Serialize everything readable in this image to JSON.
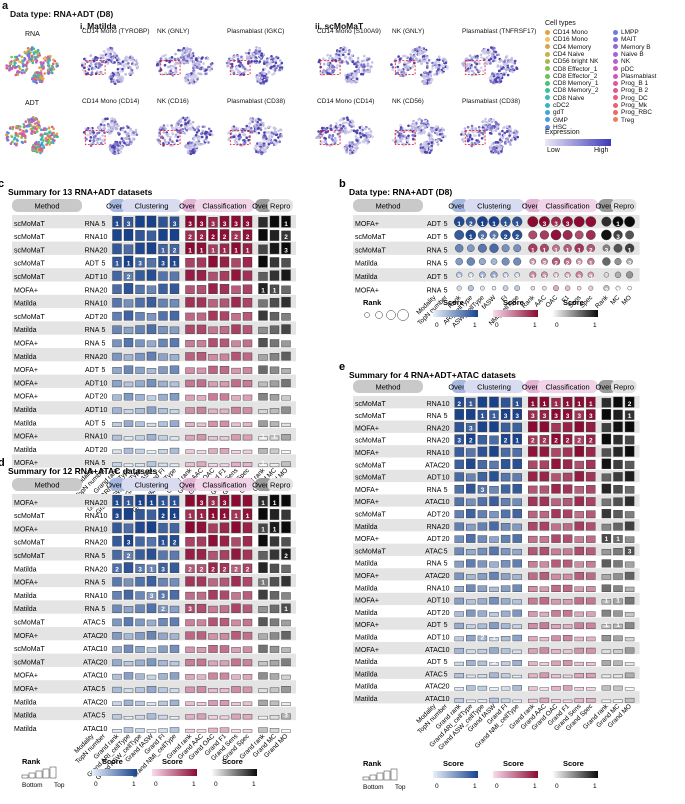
{
  "panel_a": {
    "letter": "a",
    "title": "Data type: RNA+ADT (D8)",
    "col_i": "i. Matilda",
    "col_ii": "ii. scMoMaT",
    "row_rna": "RNA",
    "row_adt": "ADT",
    "rna_titles": [
      "CD14 Mono (TYROBP)",
      "NK (GNLY)",
      "Plasmablast (IGKC)",
      "CD14 Mono (S100A9)",
      "NK (GNLY)",
      "Plasmablast (TNFRSF17)"
    ],
    "adt_titles": [
      "CD14 Mono (CD14)",
      "NK (CD16)",
      "Plasmablast (CD38)",
      "CD14 Mono (CD14)",
      "NK (CD56)",
      "Plasmablast (CD38)"
    ],
    "legend_title": "Cell types",
    "cell_types_col1": [
      "CD14 Mono",
      "CD16 Mono",
      "CD4 Memory",
      "CD4 Naive",
      "CD56 bright NK",
      "CD8 Effector_1",
      "CD8 Effector_2",
      "CD8 Memory_1",
      "CD8 Memory_2",
      "CD8 Naive",
      "cDC2",
      "gdT",
      "GMP",
      "HSC"
    ],
    "cell_types_col2": [
      "LMPP",
      "MAIT",
      "Memory B",
      "Naive B",
      "NK",
      "pDC",
      "Plasmablast",
      "Prog_B 1",
      "Prog_B 2",
      "Prog_DC",
      "Prog_Mk",
      "Prog_RBC",
      "Treg"
    ],
    "colors_col1": [
      "#e6a04a",
      "#f0c25a",
      "#d4a64a",
      "#c8b24a",
      "#a6b84a",
      "#8cc04a",
      "#6cc05a",
      "#4cc07a",
      "#3cc09a",
      "#3abcb0",
      "#3ab4c4",
      "#40a8d4",
      "#4c98dc",
      "#5c88e0"
    ],
    "colors_col2": [
      "#6c7ce0",
      "#7c70dc",
      "#9068d8",
      "#a464d4",
      "#b860cc",
      "#c85cc0",
      "#d458b0",
      "#dc58a0",
      "#e45890",
      "#e85c80",
      "#ec6070",
      "#ee6864",
      "#e88060"
    ],
    "expression_title": "Expression",
    "expression_low": "Low",
    "expression_high": "High"
  },
  "common": {
    "method": "Method",
    "overall": "Overall",
    "clustering": "Clustering",
    "classification": "Classification",
    "repro": "Repro",
    "rank_title": "Rank",
    "score_title": "Score",
    "bottom": "Bottom",
    "top": "Top",
    "zero": "0",
    "one": "1",
    "col_labels_full": [
      "Modality",
      "TopN number",
      "Grand rank",
      "Grand ARI_cellType",
      "Grand ASW_cellType",
      "Grand fASW",
      "Grand FI",
      "Grand NMI_cellType",
      "Grand rank",
      "Grand AAC",
      "Grand OAC",
      "Grand F1",
      "Grand Sens",
      "Grand Spec",
      "Grand rank",
      "Grand MC",
      "Grand MO"
    ],
    "col_labels_b": [
      "Modality",
      "TopN number",
      "Rank",
      "ARI_cellType",
      "ASW_cellType",
      "fASW",
      "FI",
      "NMI_cellType",
      "Rank",
      "AAC",
      "OAC",
      "F1",
      "Sens",
      "Spec",
      "Rank",
      "MC",
      "MO"
    ]
  },
  "panel_c": {
    "letter": "c",
    "title": "Summary for 13 RNA+ADT datasets",
    "rows": [
      [
        "scMoMaT",
        "RNA",
        "5"
      ],
      [
        "scMoMaT",
        "RNA",
        "10"
      ],
      [
        "scMoMaT",
        "RNA",
        "20"
      ],
      [
        "scMoMaT",
        "ADT",
        "5"
      ],
      [
        "scMoMaT",
        "ADT",
        "10"
      ],
      [
        "MOFA+",
        "RNA",
        "20"
      ],
      [
        "Matilda",
        "RNA",
        "10"
      ],
      [
        "scMoMaT",
        "ADT",
        "20"
      ],
      [
        "Matilda",
        "RNA",
        "5"
      ],
      [
        "MOFA+",
        "RNA",
        "5"
      ],
      [
        "Matilda",
        "RNA",
        "20"
      ],
      [
        "MOFA+",
        "ADT",
        "5"
      ],
      [
        "MOFA+",
        "ADT",
        "10"
      ],
      [
        "MOFA+",
        "ADT",
        "20"
      ],
      [
        "Matilda",
        "ADT",
        "10"
      ],
      [
        "Matilda",
        "ADT",
        "5"
      ],
      [
        "MOFA+",
        "RNA",
        "10"
      ],
      [
        "Matilda",
        "ADT",
        "20"
      ],
      [
        "MOFA+",
        "RNA",
        "5"
      ]
    ],
    "rank_labels": [
      {
        "row": 0,
        "col": 2,
        "text": "1"
      },
      {
        "row": 0,
        "col": 3,
        "text": "3"
      },
      {
        "row": 0,
        "col": 7,
        "text": "3"
      },
      {
        "row": 0,
        "col": 8,
        "text": "3"
      },
      {
        "row": 0,
        "col": 9,
        "text": "3"
      },
      {
        "row": 0,
        "col": 10,
        "text": "3"
      },
      {
        "row": 0,
        "col": 11,
        "text": "3"
      },
      {
        "row": 0,
        "col": 12,
        "text": "3"
      },
      {
        "row": 0,
        "col": 13,
        "text": "3"
      },
      {
        "row": 0,
        "col": 16,
        "text": "1"
      },
      {
        "row": 1,
        "col": 8,
        "text": "2"
      },
      {
        "row": 1,
        "col": 9,
        "text": "2"
      },
      {
        "row": 1,
        "col": 10,
        "text": "2"
      },
      {
        "row": 1,
        "col": 11,
        "text": "2"
      },
      {
        "row": 1,
        "col": 12,
        "text": "2"
      },
      {
        "row": 1,
        "col": 13,
        "text": "2"
      },
      {
        "row": 1,
        "col": 16,
        "text": "2"
      },
      {
        "row": 2,
        "col": 6,
        "text": "1"
      },
      {
        "row": 2,
        "col": 8,
        "text": "1"
      },
      {
        "row": 2,
        "col": 9,
        "text": "1"
      },
      {
        "row": 2,
        "col": 10,
        "text": "1"
      },
      {
        "row": 2,
        "col": 11,
        "text": "1"
      },
      {
        "row": 2,
        "col": 12,
        "text": "1"
      },
      {
        "row": 2,
        "col": 13,
        "text": "1"
      },
      {
        "row": 2,
        "col": 16,
        "text": "3"
      },
      {
        "row": 2,
        "col": 7,
        "text": "2"
      },
      {
        "row": 3,
        "col": 2,
        "text": "1"
      },
      {
        "row": 3,
        "col": 3,
        "text": "1"
      },
      {
        "row": 3,
        "col": 4,
        "text": "3"
      },
      {
        "row": 3,
        "col": 6,
        "text": "3"
      },
      {
        "row": 3,
        "col": 7,
        "text": "1"
      },
      {
        "row": 4,
        "col": 3,
        "text": "2"
      },
      {
        "row": 5,
        "col": 14,
        "text": "1"
      },
      {
        "row": 5,
        "col": 15,
        "text": "1"
      },
      {
        "row": 16,
        "col": 14,
        "text": "1"
      },
      {
        "row": 16,
        "col": 15,
        "text": "1"
      },
      {
        "row": 18,
        "col": 14,
        "text": "1"
      }
    ]
  },
  "panel_b": {
    "letter": "b",
    "title": "Data type: RNA+ADT (D8)",
    "rows": [
      [
        "MOFA+",
        "ADT",
        "5"
      ],
      [
        "scMoMaT",
        "ADT",
        "5"
      ],
      [
        "scMoMaT",
        "RNA",
        "5"
      ],
      [
        "Matilda",
        "RNA",
        "5"
      ],
      [
        "Matilda",
        "ADT",
        "5"
      ],
      [
        "MOFA+",
        "RNA",
        "5"
      ]
    ],
    "rank_labels": [
      {
        "row": 0,
        "col": 2,
        "text": "1"
      },
      {
        "row": 0,
        "col": 3,
        "text": "2"
      },
      {
        "row": 0,
        "col": 4,
        "text": "1"
      },
      {
        "row": 0,
        "col": 5,
        "text": "1"
      },
      {
        "row": 0,
        "col": 6,
        "text": "1"
      },
      {
        "row": 0,
        "col": 7,
        "text": "1"
      },
      {
        "row": 0,
        "col": 9,
        "text": "3"
      },
      {
        "row": 0,
        "col": 10,
        "text": "3"
      },
      {
        "row": 0,
        "col": 11,
        "text": "3"
      },
      {
        "row": 0,
        "col": 15,
        "text": "1"
      },
      {
        "row": 1,
        "col": 3,
        "text": "1"
      },
      {
        "row": 1,
        "col": 4,
        "text": "2"
      },
      {
        "row": 1,
        "col": 5,
        "text": "2"
      },
      {
        "row": 1,
        "col": 6,
        "text": "2"
      },
      {
        "row": 1,
        "col": 7,
        "text": "2"
      },
      {
        "row": 1,
        "col": 15,
        "text": "3"
      },
      {
        "row": 2,
        "col": 8,
        "text": "1"
      },
      {
        "row": 2,
        "col": 9,
        "text": "1"
      },
      {
        "row": 2,
        "col": 10,
        "text": "1"
      },
      {
        "row": 2,
        "col": 11,
        "text": "1"
      },
      {
        "row": 2,
        "col": 12,
        "text": "1"
      },
      {
        "row": 2,
        "col": 13,
        "text": "2"
      },
      {
        "row": 2,
        "col": 14,
        "text": "3"
      },
      {
        "row": 2,
        "col": 16,
        "text": "1"
      },
      {
        "row": 3,
        "col": 8,
        "text": "2"
      },
      {
        "row": 3,
        "col": 9,
        "text": "2"
      },
      {
        "row": 3,
        "col": 10,
        "text": "2"
      },
      {
        "row": 3,
        "col": 11,
        "text": "2"
      },
      {
        "row": 3,
        "col": 12,
        "text": "2"
      },
      {
        "row": 3,
        "col": 13,
        "text": "1"
      },
      {
        "row": 3,
        "col": 16,
        "text": "2"
      },
      {
        "row": 4,
        "col": 2,
        "text": "3"
      },
      {
        "row": 4,
        "col": 3,
        "text": "3"
      },
      {
        "row": 4,
        "col": 4,
        "text": "1"
      },
      {
        "row": 4,
        "col": 5,
        "text": "3"
      },
      {
        "row": 4,
        "col": 6,
        "text": "3"
      },
      {
        "row": 4,
        "col": 7,
        "text": "3"
      },
      {
        "row": 4,
        "col": 8,
        "text": "3"
      },
      {
        "row": 4,
        "col": 9,
        "text": "3"
      },
      {
        "row": 4,
        "col": 10,
        "text": "1"
      },
      {
        "row": 4,
        "col": 11,
        "text": "3"
      },
      {
        "row": 4,
        "col": 12,
        "text": "3"
      },
      {
        "row": 4,
        "col": 13,
        "text": "3"
      },
      {
        "row": 5,
        "col": 14,
        "text": "2"
      },
      {
        "row": 5,
        "col": 15,
        "text": "2"
      }
    ]
  },
  "panel_d": {
    "letter": "d",
    "title": "Summary for 12 RNA+ATAC datasets",
    "rows": [
      [
        "MOFA+",
        "RNA",
        "20"
      ],
      [
        "scMoMaT",
        "RNA",
        "10"
      ],
      [
        "MOFA+",
        "RNA",
        "10"
      ],
      [
        "scMoMaT",
        "RNA",
        "20"
      ],
      [
        "scMoMaT",
        "RNA",
        "5"
      ],
      [
        "Matilda",
        "RNA",
        "20"
      ],
      [
        "MOFA+",
        "RNA",
        "5"
      ],
      [
        "Matilda",
        "RNA",
        "10"
      ],
      [
        "Matilda",
        "RNA",
        "5"
      ],
      [
        "scMoMaT",
        "ATAC",
        "5"
      ],
      [
        "MOFA+",
        "ATAC",
        "20"
      ],
      [
        "scMoMaT",
        "ATAC",
        "10"
      ],
      [
        "scMoMaT",
        "ATAC",
        "20"
      ],
      [
        "MOFA+",
        "ATAC",
        "10"
      ],
      [
        "MOFA+",
        "ATAC",
        "5"
      ],
      [
        "Matilda",
        "ATAC",
        "20"
      ],
      [
        "Matilda",
        "ATAC",
        "5"
      ],
      [
        "Matilda",
        "ATAC",
        "10"
      ]
    ],
    "rank_labels": [
      {
        "row": 0,
        "col": 2,
        "text": "1"
      },
      {
        "row": 0,
        "col": 3,
        "text": "1"
      },
      {
        "row": 0,
        "col": 4,
        "text": "1"
      },
      {
        "row": 0,
        "col": 5,
        "text": "1"
      },
      {
        "row": 0,
        "col": 6,
        "text": "1"
      },
      {
        "row": 0,
        "col": 7,
        "text": "1"
      },
      {
        "row": 0,
        "col": 9,
        "text": "3"
      },
      {
        "row": 0,
        "col": 10,
        "text": "3"
      },
      {
        "row": 0,
        "col": 11,
        "text": "3"
      },
      {
        "row": 0,
        "col": 14,
        "text": "1"
      },
      {
        "row": 0,
        "col": 15,
        "text": "1"
      },
      {
        "row": 1,
        "col": 2,
        "text": "3"
      },
      {
        "row": 1,
        "col": 6,
        "text": "2"
      },
      {
        "row": 1,
        "col": 7,
        "text": "1"
      },
      {
        "row": 1,
        "col": 8,
        "text": "1"
      },
      {
        "row": 1,
        "col": 9,
        "text": "1"
      },
      {
        "row": 1,
        "col": 10,
        "text": "1"
      },
      {
        "row": 1,
        "col": 11,
        "text": "1"
      },
      {
        "row": 1,
        "col": 12,
        "text": "1"
      },
      {
        "row": 1,
        "col": 13,
        "text": "1"
      },
      {
        "row": 2,
        "col": 14,
        "text": "1"
      },
      {
        "row": 2,
        "col": 15,
        "text": "1"
      },
      {
        "row": 3,
        "col": 3,
        "text": "3"
      },
      {
        "row": 3,
        "col": 6,
        "text": "1"
      },
      {
        "row": 3,
        "col": 7,
        "text": "2"
      },
      {
        "row": 4,
        "col": 3,
        "text": "2"
      },
      {
        "row": 4,
        "col": 16,
        "text": "2"
      },
      {
        "row": 5,
        "col": 2,
        "text": "2"
      },
      {
        "row": 5,
        "col": 4,
        "text": "3"
      },
      {
        "row": 5,
        "col": 5,
        "text": "1"
      },
      {
        "row": 5,
        "col": 6,
        "text": "3"
      },
      {
        "row": 5,
        "col": 8,
        "text": "2"
      },
      {
        "row": 5,
        "col": 9,
        "text": "2"
      },
      {
        "row": 5,
        "col": 10,
        "text": "2"
      },
      {
        "row": 5,
        "col": 11,
        "text": "2"
      },
      {
        "row": 5,
        "col": 12,
        "text": "2"
      },
      {
        "row": 5,
        "col": 13,
        "text": "2"
      },
      {
        "row": 6,
        "col": 14,
        "text": "1"
      },
      {
        "row": 7,
        "col": 5,
        "text": "3"
      },
      {
        "row": 7,
        "col": 6,
        "text": "3"
      },
      {
        "row": 8,
        "col": 6,
        "text": "2"
      },
      {
        "row": 8,
        "col": 8,
        "text": "3"
      },
      {
        "row": 8,
        "col": 16,
        "text": "1"
      },
      {
        "row": 16,
        "col": 16,
        "text": "3"
      }
    ]
  },
  "panel_e": {
    "letter": "e",
    "title": "Summary for 4 RNA+ADT+ATAC datasets",
    "rows": [
      [
        "scMoMaT",
        "RNA",
        "10"
      ],
      [
        "scMoMaT",
        "RNA",
        "5"
      ],
      [
        "MOFA+",
        "RNA",
        "20"
      ],
      [
        "scMoMaT",
        "RNA",
        "20"
      ],
      [
        "MOFA+",
        "RNA",
        "10"
      ],
      [
        "scMoMaT",
        "ATAC",
        "20"
      ],
      [
        "scMoMaT",
        "ADT",
        "10"
      ],
      [
        "MOFA+",
        "RNA",
        "5"
      ],
      [
        "MOFA+",
        "ATAC",
        "10"
      ],
      [
        "scMoMaT",
        "ADT",
        "20"
      ],
      [
        "Matilda",
        "RNA",
        "20"
      ],
      [
        "MOFA+",
        "ADT",
        "20"
      ],
      [
        "scMoMaT",
        "ATAC",
        "5"
      ],
      [
        "Matilda",
        "RNA",
        "5"
      ],
      [
        "MOFA+",
        "ATAC",
        "20"
      ],
      [
        "Matilda",
        "RNA",
        "10"
      ],
      [
        "MOFA+",
        "ADT",
        "10"
      ],
      [
        "Matilda",
        "ADT",
        "20"
      ],
      [
        "MOFA+",
        "ADT",
        "5"
      ],
      [
        "Matilda",
        "ADT",
        "10"
      ],
      [
        "MOFA+",
        "ATAC",
        "10"
      ],
      [
        "Matilda",
        "ADT",
        "5"
      ],
      [
        "Matilda",
        "ATAC",
        "5"
      ],
      [
        "Matilda",
        "ATAC",
        "20"
      ],
      [
        "Matilda",
        "ATAC",
        "10"
      ]
    ],
    "rank_labels": [
      {
        "row": 0,
        "col": 2,
        "text": "2"
      },
      {
        "row": 0,
        "col": 3,
        "text": "1"
      },
      {
        "row": 0,
        "col": 7,
        "text": "1"
      },
      {
        "row": 0,
        "col": 8,
        "text": "1"
      },
      {
        "row": 0,
        "col": 9,
        "text": "1"
      },
      {
        "row": 0,
        "col": 10,
        "text": "1"
      },
      {
        "row": 0,
        "col": 11,
        "text": "1"
      },
      {
        "row": 0,
        "col": 12,
        "text": "1"
      },
      {
        "row": 0,
        "col": 13,
        "text": "1"
      },
      {
        "row": 0,
        "col": 16,
        "text": "2"
      },
      {
        "row": 1,
        "col": 4,
        "text": "1"
      },
      {
        "row": 1,
        "col": 5,
        "text": "1"
      },
      {
        "row": 1,
        "col": 6,
        "text": "3"
      },
      {
        "row": 1,
        "col": 7,
        "text": "3"
      },
      {
        "row": 1,
        "col": 8,
        "text": "3"
      },
      {
        "row": 1,
        "col": 9,
        "text": "3"
      },
      {
        "row": 1,
        "col": 10,
        "text": "3"
      },
      {
        "row": 1,
        "col": 11,
        "text": "3"
      },
      {
        "row": 1,
        "col": 12,
        "text": "3"
      },
      {
        "row": 1,
        "col": 13,
        "text": "3"
      },
      {
        "row": 1,
        "col": 16,
        "text": "1"
      },
      {
        "row": 2,
        "col": 3,
        "text": "3"
      },
      {
        "row": 3,
        "col": 2,
        "text": "3"
      },
      {
        "row": 3,
        "col": 3,
        "text": "2"
      },
      {
        "row": 3,
        "col": 6,
        "text": "2"
      },
      {
        "row": 3,
        "col": 7,
        "text": "1"
      },
      {
        "row": 3,
        "col": 8,
        "text": "2"
      },
      {
        "row": 3,
        "col": 9,
        "text": "2"
      },
      {
        "row": 3,
        "col": 10,
        "text": "2"
      },
      {
        "row": 3,
        "col": 11,
        "text": "2"
      },
      {
        "row": 3,
        "col": 12,
        "text": "2"
      },
      {
        "row": 3,
        "col": 13,
        "text": "2"
      },
      {
        "row": 7,
        "col": 4,
        "text": "3"
      },
      {
        "row": 11,
        "col": 14,
        "text": "1"
      },
      {
        "row": 11,
        "col": 15,
        "text": "1"
      },
      {
        "row": 12,
        "col": 16,
        "text": "3"
      },
      {
        "row": 16,
        "col": 14,
        "text": "1"
      },
      {
        "row": 16,
        "col": 15,
        "text": "1"
      },
      {
        "row": 18,
        "col": 14,
        "text": "1"
      },
      {
        "row": 18,
        "col": 15,
        "text": "1"
      },
      {
        "row": 19,
        "col": 4,
        "text": "2"
      },
      {
        "row": 19,
        "col": 5,
        "text": "1"
      },
      {
        "row": 21,
        "col": 5,
        "text": "3"
      }
    ]
  }
}
